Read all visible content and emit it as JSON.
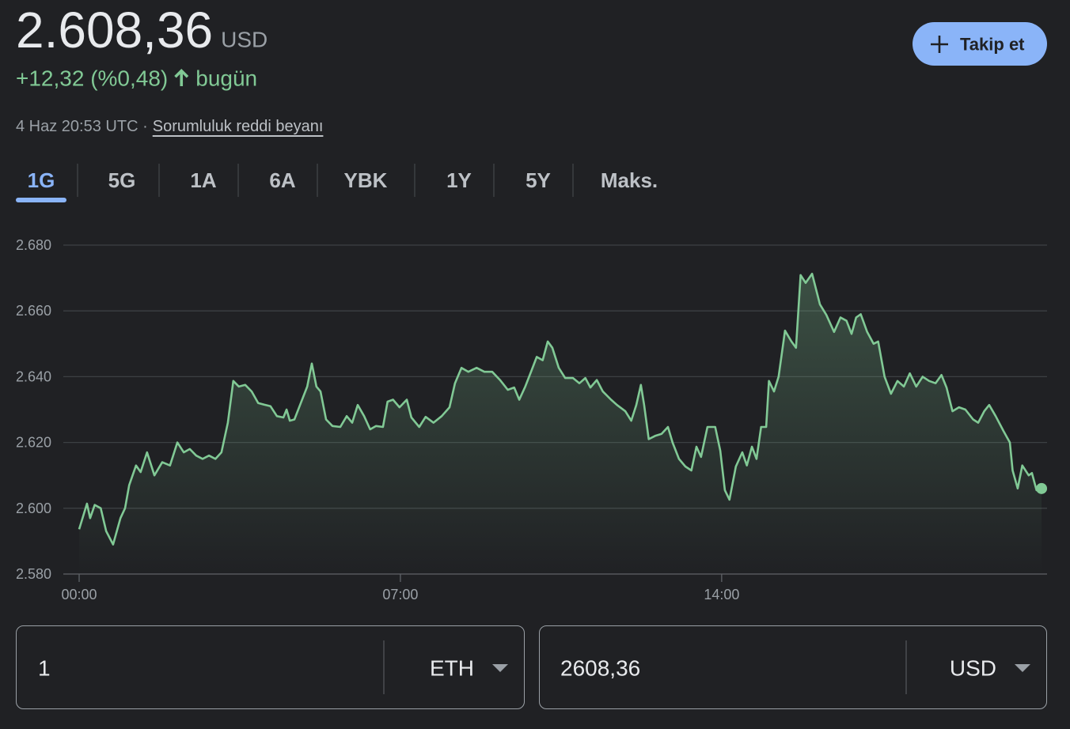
{
  "header": {
    "price": "2.608,36",
    "currency": "USD",
    "change": "+12,32 (%0,48)",
    "change_period": "bugün",
    "timestamp": "4 Haz 20:53 UTC ·",
    "disclaimer": "Sorumluluk reddi beyanı",
    "follow_button": "Takip et"
  },
  "tabs": [
    "1G",
    "5G",
    "1A",
    "6A",
    "YBK",
    "1Y",
    "5Y",
    "Maks."
  ],
  "active_tab": 0,
  "chart_data": {
    "type": "line",
    "color": "#81c995",
    "area": true,
    "grid": true,
    "x": [
      0,
      0.17,
      0.24,
      0.34,
      0.47,
      0.59,
      0.74,
      0.9,
      1,
      1.09,
      1.24,
      1.34,
      1.48,
      1.64,
      1.81,
      1.98,
      2.14,
      2.28,
      2.41,
      2.55,
      2.69,
      2.83,
      2.97,
      3.1,
      3.24,
      3.36,
      3.48,
      3.62,
      3.76,
      3.9,
      4.03,
      4.17,
      4.31,
      4.45,
      4.52,
      4.59,
      4.69,
      4.83,
      4.97,
      5.07,
      5.17,
      5.26,
      5.38,
      5.52,
      5.69,
      5.83,
      5.95,
      6.07,
      6.21,
      6.34,
      6.47,
      6.62,
      6.72,
      6.84,
      6.98,
      7.14,
      7.24,
      7.41,
      7.55,
      7.72,
      7.9,
      8.07,
      8.19,
      8.33,
      8.48,
      8.66,
      8.83,
      9,
      9.17,
      9.34,
      9.48,
      9.59,
      9.72,
      9.86,
      9.97,
      10.1,
      10.21,
      10.31,
      10.45,
      10.59,
      10.76,
      10.9,
      11.03,
      11.14,
      11.28,
      11.41,
      11.59,
      11.72,
      11.9,
      12.03,
      12.14,
      12.24,
      12.31,
      12.41,
      12.55,
      12.69,
      12.83,
      12.93,
      13.07,
      13.21,
      13.34,
      13.45,
      13.55,
      13.69,
      13.86,
      13.97,
      14.07,
      14.17,
      14.31,
      14.45,
      14.55,
      14.66,
      14.76,
      14.86,
      14.97,
      15.03,
      15.14,
      15.24,
      15.38,
      15.52,
      15.62,
      15.72,
      15.83,
      15.97,
      16.14,
      16.28,
      16.45,
      16.59,
      16.72,
      16.83,
      16.93,
      17.03,
      17.17,
      17.31,
      17.41,
      17.55,
      17.69,
      17.83,
      17.97,
      18.1,
      18.24,
      18.38,
      18.52,
      18.66,
      18.79,
      18.9,
      19.03,
      19.17,
      19.31,
      19.48,
      19.59,
      19.72,
      19.83,
      19.97,
      20.14,
      20.28,
      20.34,
      20.45,
      20.55,
      20.69,
      20.76,
      20.86,
      20.97
    ],
    "values": [
      2593.6,
      2601.4,
      2597,
      2601,
      2600,
      2593,
      2589,
      2597,
      2600,
      2607,
      2613,
      2611,
      2617,
      2610,
      2614,
      2613,
      2620,
      2617,
      2618,
      2616,
      2615,
      2616,
      2615,
      2617,
      2626,
      2638.7,
      2637,
      2637.5,
      2635.5,
      2632,
      2631.5,
      2631,
      2628,
      2627.6,
      2630,
      2626.6,
      2627,
      2632,
      2637,
      2644,
      2637,
      2635.5,
      2627,
      2625,
      2624.7,
      2628,
      2626,
      2631.4,
      2628,
      2624,
      2625,
      2624.7,
      2632.4,
      2633,
      2630.7,
      2633,
      2627.6,
      2624.7,
      2627.8,
      2626,
      2628,
      2630.7,
      2638,
      2642.7,
      2641.5,
      2642.7,
      2641.5,
      2641.5,
      2639,
      2636,
      2636.7,
      2633,
      2637,
      2642,
      2646,
      2645,
      2650.7,
      2648.8,
      2642.7,
      2639.6,
      2639.6,
      2638,
      2639.6,
      2636.7,
      2639,
      2635.5,
      2633,
      2631.4,
      2629.5,
      2626.6,
      2631.4,
      2637.5,
      2631.4,
      2621,
      2622,
      2622.6,
      2624.7,
      2620,
      2615,
      2612.7,
      2611.5,
      2618.7,
      2615.6,
      2624.7,
      2624.7,
      2617.5,
      2605.5,
      2602.6,
      2612.7,
      2617,
      2613,
      2618.7,
      2615,
      2624.7,
      2624.7,
      2638.7,
      2635.5,
      2640,
      2654,
      2650.7,
      2648.8,
      2670.9,
      2668.5,
      2671.3,
      2662,
      2658.8,
      2653.6,
      2658,
      2657,
      2653,
      2658,
      2659,
      2653.6,
      2650,
      2650.7,
      2640,
      2634.8,
      2638.7,
      2637,
      2641,
      2637,
      2640,
      2638.7,
      2638,
      2640.5,
      2636.7,
      2629.5,
      2630.7,
      2630,
      2627,
      2626,
      2629.5,
      2631.4,
      2628,
      2623.5,
      2620,
      2611.5,
      2606,
      2613,
      2610,
      2610.7,
      2605.5,
      2606
    ],
    "xlim": [
      0,
      21.09
    ],
    "xticks": [
      {
        "value": 0,
        "label": "00:00"
      },
      {
        "value": 7,
        "label": "07:00"
      },
      {
        "value": 14,
        "label": "14:00"
      }
    ],
    "ylim": [
      2580,
      2680
    ],
    "yticks": [
      {
        "value": 2580,
        "label": "2.580"
      },
      {
        "value": 2600,
        "label": "2.600"
      },
      {
        "value": 2620,
        "label": "2.620"
      },
      {
        "value": 2640,
        "label": "2.640"
      },
      {
        "value": 2660,
        "label": "2.660"
      },
      {
        "value": 2680,
        "label": "2.680"
      }
    ]
  },
  "converter": {
    "from_amount": "1",
    "from_currency": "ETH",
    "to_amount": "2608,36",
    "to_currency": "USD"
  }
}
